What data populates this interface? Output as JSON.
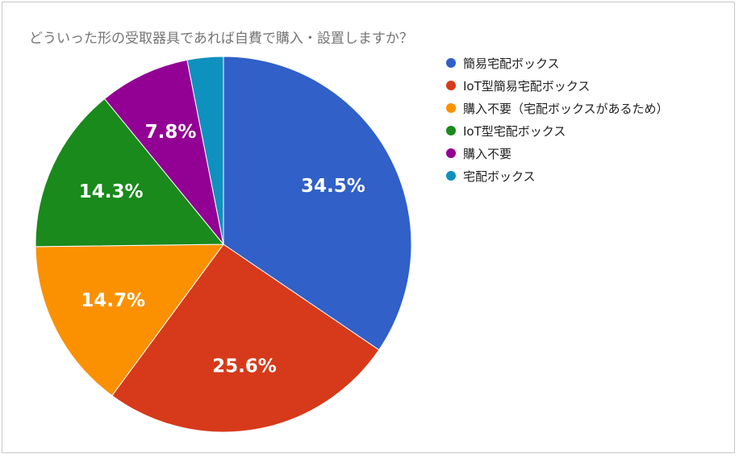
{
  "chart_data": {
    "type": "pie",
    "title": "どういった形の受取器具であれば自費で購入・設置しますか？",
    "legend_position": "right",
    "slices": [
      {
        "label": "簡易宅配ボックス",
        "value": 34.5,
        "value_label": "34.5%",
        "color": "#3060c8"
      },
      {
        "label": "IoT型簡易宅配ボックス",
        "value": 25.6,
        "value_label": "25.6%",
        "color": "#d63a1a"
      },
      {
        "label": "購入不要（宅配ボックスがあるため）",
        "value": 14.7,
        "value_label": "14.7%",
        "color": "#fb9100"
      },
      {
        "label": "IoT型宅配ボックス",
        "value": 14.3,
        "value_label": "14.3%",
        "color": "#198a1b"
      },
      {
        "label": "購入不要",
        "value": 7.8,
        "value_label": "7.8%",
        "color": "#920094"
      },
      {
        "label": "宅配ボックス",
        "value": 3.1,
        "value_label": "",
        "color": "#0e91be"
      }
    ]
  }
}
